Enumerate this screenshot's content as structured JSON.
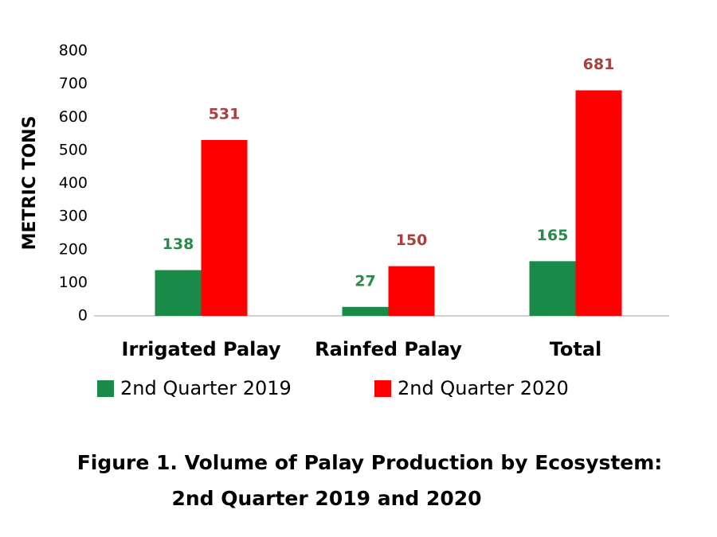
{
  "chart_data": {
    "type": "bar",
    "title": [
      "Figure 1. Volume of Palay Production by Ecosystem:",
      "2nd Quarter 2019 and 2020"
    ],
    "y_label": "METRIC TONS",
    "categories": [
      "Irrigated Palay",
      "Rainfed Palay",
      "Total"
    ],
    "series": [
      {
        "name": "2nd Quarter 2019",
        "color": "#1a8a48",
        "label_color": "#2a8a4a",
        "values": [
          138,
          27,
          165
        ]
      },
      {
        "name": "2nd Quarter 2020",
        "color": "#ff0000",
        "label_color": "#a8403c",
        "values": [
          531,
          150,
          681
        ]
      }
    ],
    "ylim": [
      0,
      800
    ],
    "yticks": [
      0,
      100,
      200,
      300,
      400,
      500,
      600,
      700,
      800
    ],
    "grid": false,
    "legend": "bottom"
  }
}
